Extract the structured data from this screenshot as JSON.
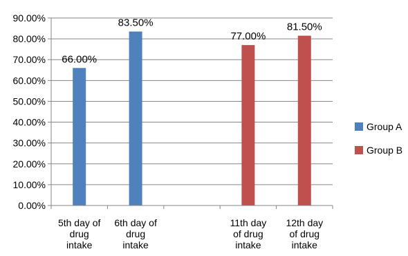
{
  "chart_data": {
    "type": "bar",
    "categories": [
      [
        "5th day of",
        "drug",
        "intake"
      ],
      [
        "6th day of",
        "drug",
        "intake"
      ],
      [
        "",
        "",
        ""
      ],
      [
        "11th day",
        "of drug",
        "intake"
      ],
      [
        "12th day",
        "of drug",
        "intake"
      ]
    ],
    "series": [
      {
        "name": "Group A",
        "color": "#4F81BD",
        "values": [
          66.0,
          83.5,
          null,
          null,
          null
        ],
        "labels": [
          "66.00%",
          "83.50%",
          "",
          "",
          ""
        ]
      },
      {
        "name": "Group B",
        "color": "#C0504D",
        "values": [
          null,
          null,
          null,
          77.0,
          81.5
        ],
        "labels": [
          "",
          "",
          "",
          "77.00%",
          "81.50%"
        ]
      }
    ],
    "ylim": [
      0,
      90
    ],
    "ytick_step": 10,
    "ytick_labels": [
      "0.00%",
      "10.00%",
      "20.00%",
      "30.00%",
      "40.00%",
      "50.00%",
      "60.00%",
      "70.00%",
      "80.00%",
      "90.00%"
    ],
    "grid": true,
    "legend_position": "right",
    "title": "",
    "xlabel": "",
    "ylabel": ""
  }
}
